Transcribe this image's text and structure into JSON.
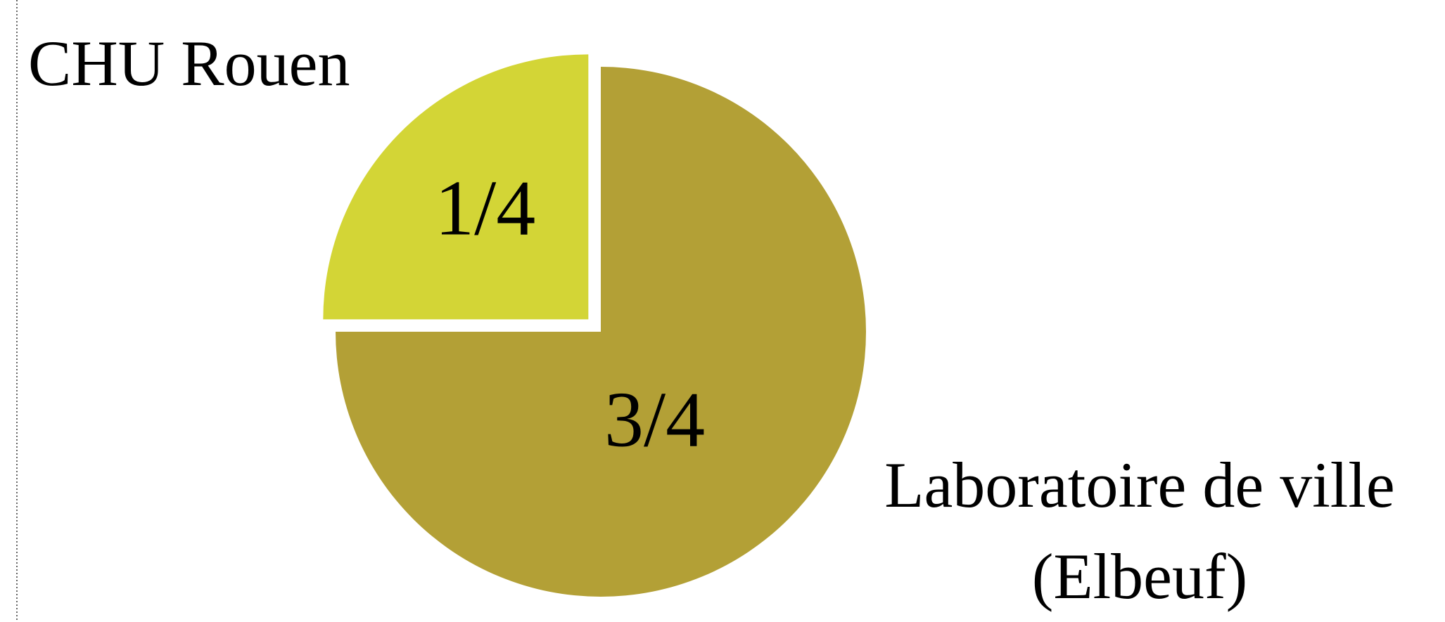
{
  "chart_data": {
    "type": "pie",
    "categories": [
      "CHU Rouen",
      "Laboratoire de ville (Elbeuf)"
    ],
    "values": [
      0.25,
      0.75
    ],
    "value_labels": [
      "1/4",
      "3/4"
    ],
    "colors": [
      "#d3d536",
      "#b3a036"
    ],
    "exploded": [
      true,
      false
    ]
  }
}
